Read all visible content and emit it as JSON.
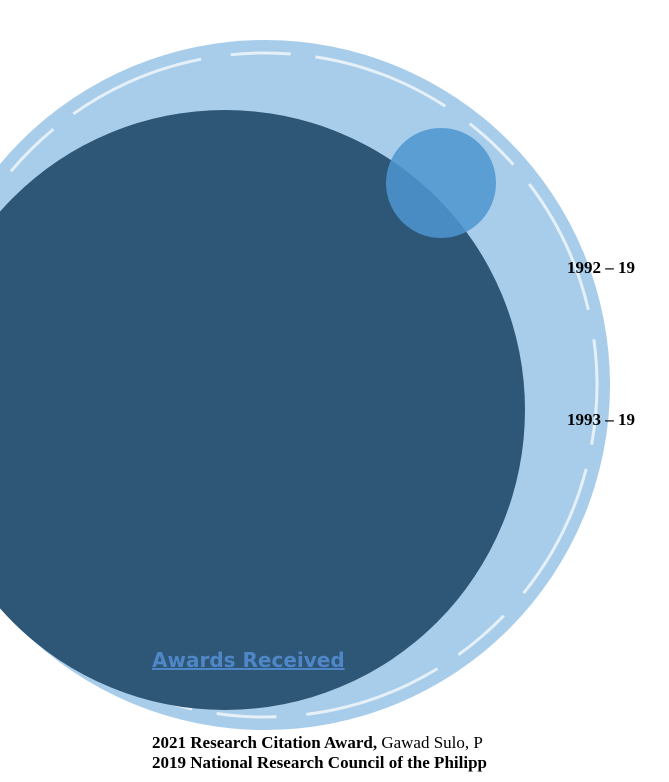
{
  "timeline": [
    {
      "years": "1992 – 19"
    },
    {
      "years": "1993 – 19"
    }
  ],
  "awards": {
    "heading": "Awards Received",
    "items": [
      {
        "title": "2021 Research Citation Award,",
        "detail": "Gawad Sulo, P"
      },
      {
        "title": "2019 National Research Council of the Philipp"
      }
    ]
  }
}
